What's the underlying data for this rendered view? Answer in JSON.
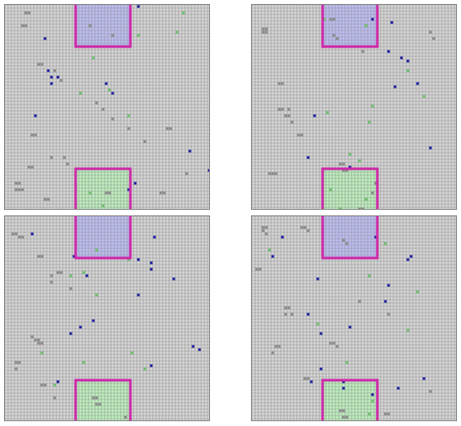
{
  "colors": {
    "background": "#ffffff",
    "grid_cell": "#d6d6d6",
    "grid_line": "#8d8d8d",
    "obstacle": "#8a8a8a",
    "agent_blue": "#1818a8",
    "agent_green": "#66c866",
    "zone_top_fill": "#bdbdf4",
    "zone_bottom_fill": "#bdf0bd",
    "zone_border": "#cc2aa8"
  },
  "grid": {
    "cols": 64,
    "rows": 64
  },
  "zones": {
    "top": {
      "col": 22,
      "row": 0,
      "w": 17,
      "h": 13
    },
    "bottom": {
      "col": 22,
      "row": 51,
      "w": 17,
      "h": 13
    }
  },
  "panels": [
    {
      "id": "panel-1",
      "blue": [
        [
          41,
          0
        ],
        [
          12,
          10
        ],
        [
          13,
          20
        ],
        [
          14,
          22
        ],
        [
          16,
          22
        ],
        [
          14,
          24
        ],
        [
          31,
          24
        ],
        [
          33,
          27
        ],
        [
          9,
          34
        ],
        [
          57,
          45
        ],
        [
          63,
          51
        ],
        [
          40,
          55
        ],
        [
          38,
          57
        ]
      ],
      "green": [
        [
          55,
          2
        ],
        [
          53,
          8
        ],
        [
          41,
          9
        ],
        [
          32,
          26
        ],
        [
          23,
          27
        ],
        [
          38,
          34
        ],
        [
          27,
          16
        ],
        [
          26,
          58
        ],
        [
          30,
          62
        ]
      ],
      "gray": [
        [
          6,
          2
        ],
        [
          7,
          2
        ],
        [
          5,
          6
        ],
        [
          6,
          6
        ],
        [
          26,
          6
        ],
        [
          33,
          9
        ],
        [
          10,
          18
        ],
        [
          11,
          18
        ],
        [
          15,
          20
        ],
        [
          17,
          23
        ],
        [
          28,
          30
        ],
        [
          30,
          32
        ],
        [
          33,
          35
        ],
        [
          38,
          38
        ],
        [
          8,
          40
        ],
        [
          9,
          40
        ],
        [
          43,
          42
        ],
        [
          50,
          38
        ],
        [
          51,
          38
        ],
        [
          14,
          47
        ],
        [
          18,
          47
        ],
        [
          19,
          49
        ],
        [
          7,
          50
        ],
        [
          8,
          50
        ],
        [
          3,
          55
        ],
        [
          4,
          55
        ],
        [
          3,
          57
        ],
        [
          4,
          57
        ],
        [
          5,
          57
        ],
        [
          12,
          60
        ],
        [
          13,
          60
        ],
        [
          48,
          58
        ],
        [
          49,
          58
        ],
        [
          56,
          52
        ],
        [
          31,
          58
        ],
        [
          32,
          58
        ]
      ]
    },
    {
      "id": "panel-2",
      "blue": [
        [
          37,
          4
        ],
        [
          43,
          5
        ],
        [
          42,
          14
        ],
        [
          46,
          16
        ],
        [
          48,
          17
        ],
        [
          51,
          24
        ],
        [
          44,
          25
        ],
        [
          19,
          34
        ],
        [
          55,
          44
        ],
        [
          17,
          47
        ],
        [
          30,
          50
        ]
      ],
      "green": [
        [
          22,
          4
        ],
        [
          35,
          6
        ],
        [
          48,
          20
        ],
        [
          53,
          28
        ],
        [
          37,
          31
        ],
        [
          23,
          33
        ],
        [
          36,
          36
        ],
        [
          30,
          46
        ],
        [
          33,
          48
        ],
        [
          24,
          57
        ],
        [
          35,
          60
        ],
        [
          27,
          63
        ]
      ],
      "gray": [
        [
          3,
          7
        ],
        [
          4,
          7
        ],
        [
          3,
          8
        ],
        [
          4,
          8
        ],
        [
          24,
          4
        ],
        [
          25,
          4
        ],
        [
          25,
          9
        ],
        [
          26,
          10
        ],
        [
          34,
          14
        ],
        [
          8,
          24
        ],
        [
          9,
          24
        ],
        [
          8,
          32
        ],
        [
          9,
          32
        ],
        [
          11,
          32
        ],
        [
          10,
          34
        ],
        [
          11,
          34
        ],
        [
          12,
          36
        ],
        [
          14,
          40
        ],
        [
          15,
          40
        ],
        [
          5,
          52
        ],
        [
          6,
          52
        ],
        [
          7,
          52
        ],
        [
          27,
          49
        ],
        [
          28,
          49
        ],
        [
          28,
          51
        ],
        [
          29,
          51
        ],
        [
          38,
          55
        ],
        [
          37,
          58
        ],
        [
          55,
          8
        ],
        [
          56,
          10
        ],
        [
          33,
          63
        ],
        [
          34,
          63
        ]
      ]
    },
    {
      "id": "panel-3",
      "blue": [
        [
          8,
          5
        ],
        [
          46,
          6
        ],
        [
          21,
          12
        ],
        [
          41,
          13
        ],
        [
          45,
          14
        ],
        [
          45,
          16
        ],
        [
          25,
          18
        ],
        [
          52,
          19
        ],
        [
          41,
          24
        ],
        [
          27,
          32
        ],
        [
          23,
          34
        ],
        [
          20,
          36
        ],
        [
          58,
          40
        ],
        [
          60,
          41
        ],
        [
          45,
          46
        ],
        [
          16,
          51
        ]
      ],
      "green": [
        [
          28,
          10
        ],
        [
          38,
          13
        ],
        [
          24,
          17
        ],
        [
          20,
          18
        ],
        [
          28,
          24
        ],
        [
          11,
          42
        ],
        [
          24,
          45
        ],
        [
          39,
          42
        ],
        [
          43,
          47
        ],
        [
          15,
          52
        ]
      ],
      "gray": [
        [
          2,
          5
        ],
        [
          3,
          5
        ],
        [
          4,
          6
        ],
        [
          5,
          6
        ],
        [
          10,
          12
        ],
        [
          11,
          12
        ],
        [
          16,
          17
        ],
        [
          17,
          17
        ],
        [
          14,
          18
        ],
        [
          14,
          20
        ],
        [
          20,
          22
        ],
        [
          8,
          37
        ],
        [
          9,
          38
        ],
        [
          10,
          38
        ],
        [
          10,
          39
        ],
        [
          11,
          39
        ],
        [
          3,
          45
        ],
        [
          4,
          45
        ],
        [
          3,
          47
        ],
        [
          11,
          52
        ],
        [
          12,
          52
        ],
        [
          15,
          56
        ],
        [
          27,
          56
        ],
        [
          28,
          56
        ],
        [
          28,
          58
        ],
        [
          29,
          58
        ],
        [
          37,
          62
        ]
      ]
    },
    {
      "id": "panel-4",
      "blue": [
        [
          9,
          6
        ],
        [
          38,
          6
        ],
        [
          49,
          12
        ],
        [
          48,
          13
        ],
        [
          6,
          12
        ],
        [
          20,
          19
        ],
        [
          42,
          21
        ],
        [
          41,
          26
        ],
        [
          17,
          30
        ],
        [
          30,
          34
        ],
        [
          21,
          36
        ],
        [
          21,
          47
        ],
        [
          18,
          51
        ],
        [
          28,
          51
        ],
        [
          28,
          53
        ],
        [
          45,
          53
        ],
        [
          53,
          50
        ],
        [
          37,
          55
        ]
      ],
      "green": [
        [
          41,
          8
        ],
        [
          5,
          10
        ],
        [
          36,
          18
        ],
        [
          51,
          23
        ],
        [
          20,
          33
        ],
        [
          48,
          35
        ],
        [
          29,
          45
        ],
        [
          37,
          57
        ],
        [
          36,
          61
        ]
      ],
      "gray": [
        [
          3,
          3
        ],
        [
          4,
          3
        ],
        [
          3,
          4
        ],
        [
          4,
          5
        ],
        [
          15,
          3
        ],
        [
          16,
          3
        ],
        [
          17,
          4
        ],
        [
          28,
          7
        ],
        [
          29,
          8
        ],
        [
          1,
          16
        ],
        [
          2,
          16
        ],
        [
          10,
          28
        ],
        [
          11,
          28
        ],
        [
          10,
          30
        ],
        [
          12,
          30
        ],
        [
          33,
          26
        ],
        [
          42,
          30
        ],
        [
          7,
          40
        ],
        [
          8,
          40
        ],
        [
          6,
          42
        ],
        [
          24,
          39
        ],
        [
          25,
          39
        ],
        [
          26,
          40
        ],
        [
          16,
          50
        ],
        [
          17,
          50
        ],
        [
          27,
          60
        ],
        [
          28,
          60
        ],
        [
          28,
          62
        ],
        [
          29,
          62
        ],
        [
          41,
          61
        ],
        [
          42,
          61
        ],
        [
          55,
          54
        ]
      ]
    }
  ]
}
